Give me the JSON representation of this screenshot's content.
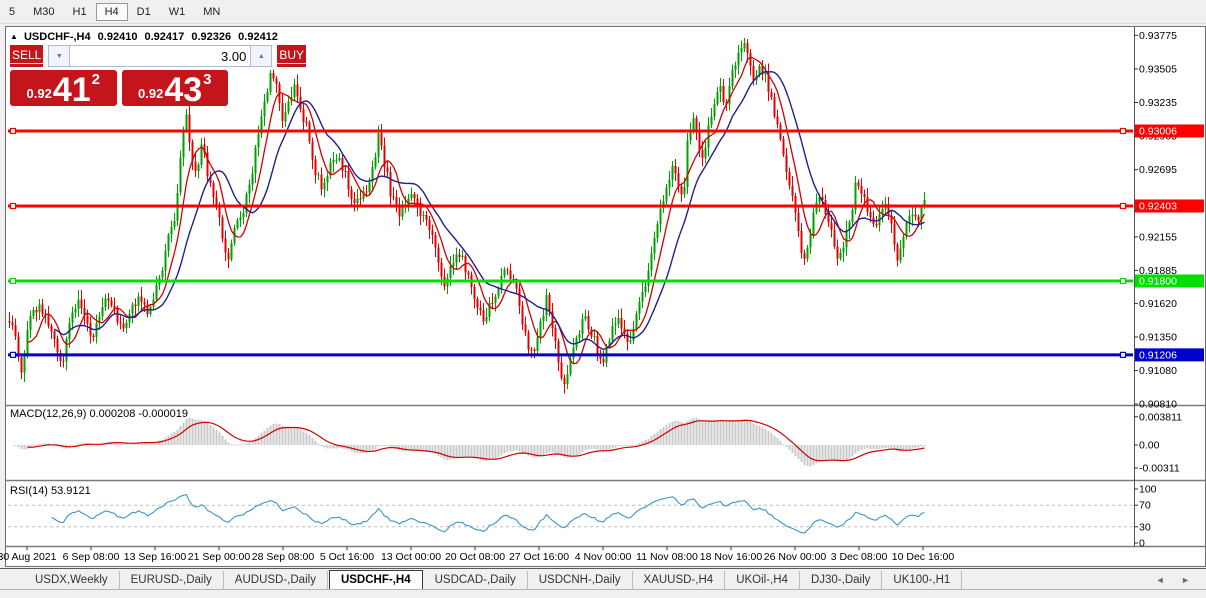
{
  "toolbar": {
    "timeframes": [
      {
        "label": "5",
        "active": false
      },
      {
        "label": "M30",
        "active": false
      },
      {
        "label": "H1",
        "active": false
      },
      {
        "label": "H4",
        "active": true
      },
      {
        "label": "D1",
        "active": false
      },
      {
        "label": "W1",
        "active": false
      },
      {
        "label": "MN",
        "active": false
      }
    ]
  },
  "chart": {
    "title": {
      "arrow": "▲",
      "symbol": "USDCHF-,H4",
      "open": "0.92410",
      "high": "0.92417",
      "low": "0.92326",
      "close": "0.92412"
    },
    "trade_panel": {
      "sell_label": "SELL",
      "buy_label": "BUY",
      "volume": "3.00",
      "down_arrow": "▼",
      "up_arrow": "▲",
      "sell_price": {
        "prefix": "0.92",
        "big": "41",
        "sup": "2"
      },
      "buy_price": {
        "prefix": "0.92",
        "big": "43",
        "sup": "3"
      }
    }
  },
  "chart_data": {
    "type": "candlestick",
    "symbol": "USDCHF-",
    "timeframe": "H4",
    "price_axis_ticks": [
      "0.93775",
      "0.93505",
      "0.93235",
      "0.92965",
      "0.92695",
      "0.92425",
      "0.92155",
      "0.91885",
      "0.91620",
      "0.91350",
      "0.91080",
      "0.90810"
    ],
    "time_axis_labels": [
      "30 Aug 2021",
      "6 Sep 08:00",
      "13 Sep 16:00",
      "21 Sep 00:00",
      "28 Sep 08:00",
      "5 Oct 16:00",
      "13 Oct 00:00",
      "20 Oct 08:00",
      "27 Oct 16:00",
      "4 Nov 00:00",
      "11 Nov 08:00",
      "18 Nov 16:00",
      "26 Nov 00:00",
      "3 Dec 08:00",
      "10 Dec 16:00"
    ],
    "hlines": [
      {
        "price": "0.93006",
        "label": "0.93006",
        "color": "#FF0000"
      },
      {
        "price": "0.92403",
        "label": "0.92403",
        "color": "#FF0000"
      },
      {
        "price": "0.91800",
        "label": "0.91800",
        "color": "#00DE00"
      },
      {
        "price": "0.91206",
        "label": "0.91206",
        "color": "#0000CC"
      }
    ],
    "plot_price_range": {
      "top": 0.93834,
      "bottom": 0.90811
    },
    "bars": 306,
    "price_path_anchors": [
      [
        0.0,
        0.9148
      ],
      [
        0.008,
        0.9132
      ],
      [
        0.013,
        0.9106
      ],
      [
        0.022,
        0.9152
      ],
      [
        0.033,
        0.916
      ],
      [
        0.043,
        0.9142
      ],
      [
        0.051,
        0.9128
      ],
      [
        0.059,
        0.9115
      ],
      [
        0.067,
        0.915
      ],
      [
        0.076,
        0.9162
      ],
      [
        0.084,
        0.915
      ],
      [
        0.091,
        0.9135
      ],
      [
        0.1,
        0.9155
      ],
      [
        0.109,
        0.9168
      ],
      [
        0.124,
        0.914
      ],
      [
        0.133,
        0.9155
      ],
      [
        0.141,
        0.9165
      ],
      [
        0.149,
        0.9155
      ],
      [
        0.157,
        0.9168
      ],
      [
        0.165,
        0.9185
      ],
      [
        0.174,
        0.9215
      ],
      [
        0.182,
        0.9235
      ],
      [
        0.189,
        0.9295
      ],
      [
        0.193,
        0.932
      ],
      [
        0.198,
        0.9285
      ],
      [
        0.204,
        0.927
      ],
      [
        0.211,
        0.929
      ],
      [
        0.217,
        0.9265
      ],
      [
        0.225,
        0.9245
      ],
      [
        0.233,
        0.9215
      ],
      [
        0.239,
        0.92
      ],
      [
        0.247,
        0.9222
      ],
      [
        0.254,
        0.9235
      ],
      [
        0.261,
        0.925
      ],
      [
        0.268,
        0.928
      ],
      [
        0.276,
        0.931
      ],
      [
        0.283,
        0.934
      ],
      [
        0.287,
        0.9352
      ],
      [
        0.293,
        0.933
      ],
      [
        0.299,
        0.9305
      ],
      [
        0.304,
        0.932
      ],
      [
        0.312,
        0.9342
      ],
      [
        0.317,
        0.932
      ],
      [
        0.326,
        0.93
      ],
      [
        0.334,
        0.927
      ],
      [
        0.341,
        0.9258
      ],
      [
        0.35,
        0.9272
      ],
      [
        0.359,
        0.928
      ],
      [
        0.366,
        0.9268
      ],
      [
        0.374,
        0.9248
      ],
      [
        0.383,
        0.9242
      ],
      [
        0.391,
        0.9255
      ],
      [
        0.399,
        0.9275
      ],
      [
        0.404,
        0.9298
      ],
      [
        0.41,
        0.9275
      ],
      [
        0.417,
        0.925
      ],
      [
        0.426,
        0.9235
      ],
      [
        0.435,
        0.9245
      ],
      [
        0.442,
        0.925
      ],
      [
        0.45,
        0.9235
      ],
      [
        0.459,
        0.9225
      ],
      [
        0.467,
        0.92
      ],
      [
        0.475,
        0.9175
      ],
      [
        0.483,
        0.9192
      ],
      [
        0.489,
        0.9205
      ],
      [
        0.497,
        0.9195
      ],
      [
        0.504,
        0.9175
      ],
      [
        0.511,
        0.9158
      ],
      [
        0.518,
        0.9148
      ],
      [
        0.526,
        0.9162
      ],
      [
        0.535,
        0.9175
      ],
      [
        0.543,
        0.919
      ],
      [
        0.551,
        0.918
      ],
      [
        0.559,
        0.9155
      ],
      [
        0.565,
        0.913
      ],
      [
        0.573,
        0.9118
      ],
      [
        0.58,
        0.9145
      ],
      [
        0.587,
        0.9165
      ],
      [
        0.595,
        0.914
      ],
      [
        0.6,
        0.911
      ],
      [
        0.605,
        0.9092
      ],
      [
        0.613,
        0.9118
      ],
      [
        0.62,
        0.9135
      ],
      [
        0.627,
        0.915
      ],
      [
        0.635,
        0.9142
      ],
      [
        0.641,
        0.9128
      ],
      [
        0.649,
        0.9115
      ],
      [
        0.657,
        0.9135
      ],
      [
        0.663,
        0.915
      ],
      [
        0.671,
        0.9142
      ],
      [
        0.678,
        0.913
      ],
      [
        0.687,
        0.9155
      ],
      [
        0.696,
        0.918
      ],
      [
        0.703,
        0.921
      ],
      [
        0.711,
        0.9235
      ],
      [
        0.717,
        0.9255
      ],
      [
        0.725,
        0.927
      ],
      [
        0.73,
        0.9262
      ],
      [
        0.737,
        0.9248
      ],
      [
        0.741,
        0.9295
      ],
      [
        0.747,
        0.931
      ],
      [
        0.752,
        0.9295
      ],
      [
        0.758,
        0.928
      ],
      [
        0.763,
        0.93
      ],
      [
        0.768,
        0.932
      ],
      [
        0.776,
        0.9335
      ],
      [
        0.783,
        0.932
      ],
      [
        0.79,
        0.9345
      ],
      [
        0.798,
        0.9365
      ],
      [
        0.804,
        0.9375
      ],
      [
        0.809,
        0.9358
      ],
      [
        0.815,
        0.934
      ],
      [
        0.82,
        0.9352
      ],
      [
        0.826,
        0.9345
      ],
      [
        0.833,
        0.9325
      ],
      [
        0.841,
        0.93
      ],
      [
        0.848,
        0.9275
      ],
      [
        0.855,
        0.925
      ],
      [
        0.861,
        0.9225
      ],
      [
        0.867,
        0.9195
      ],
      [
        0.874,
        0.9215
      ],
      [
        0.88,
        0.924
      ],
      [
        0.887,
        0.925
      ],
      [
        0.893,
        0.9235
      ],
      [
        0.9,
        0.9215
      ],
      [
        0.907,
        0.9195
      ],
      [
        0.913,
        0.9215
      ],
      [
        0.921,
        0.924
      ],
      [
        0.926,
        0.9262
      ],
      [
        0.933,
        0.925
      ],
      [
        0.939,
        0.9235
      ],
      [
        0.946,
        0.9222
      ],
      [
        0.952,
        0.9232
      ],
      [
        0.959,
        0.924
      ],
      [
        0.965,
        0.922
      ],
      [
        0.972,
        0.9195
      ],
      [
        0.978,
        0.9222
      ],
      [
        0.985,
        0.9235
      ],
      [
        0.991,
        0.9228
      ],
      [
        0.997,
        0.9238
      ],
      [
        1.0,
        0.9241
      ]
    ],
    "macd": {
      "label": "MACD(12,26,9) 0.000208 -0.000019",
      "fast": 12,
      "slow": 26,
      "signal_period": 9,
      "value": "0.000208",
      "signal_value": "-0.000019",
      "axis_ticks": [
        "0.003811",
        "0.00",
        "-0.00311"
      ]
    },
    "rsi": {
      "label": "RSI(14) 53.9121",
      "period": 14,
      "value": "53.9121",
      "levels": [
        70,
        30
      ],
      "axis_ticks": [
        "100",
        "70",
        "30",
        "0"
      ]
    }
  },
  "tabs": {
    "items": [
      {
        "label": "USDX,Weekly"
      },
      {
        "label": "EURUSD-,Daily"
      },
      {
        "label": "AUDUSD-,Daily"
      },
      {
        "label": "USDCHF-,H4"
      },
      {
        "label": "USDCAD-,Daily"
      },
      {
        "label": "USDCNH-,Daily"
      },
      {
        "label": "XAUUSD-,H4"
      },
      {
        "label": "UKOil-,H4"
      },
      {
        "label": "DJ30-,Daily"
      },
      {
        "label": "UK100-,H1"
      }
    ],
    "active_index": 3,
    "scroll_left": "◄",
    "scroll_right": "►"
  },
  "colors": {
    "candle_up": "#00A000",
    "candle_down": "#E30000",
    "ma_fast": "#D40000",
    "ma_slow": "#20208F",
    "macd_hist": "#C9C9C9",
    "macd_signal": "#D40000",
    "rsi_line": "#3C96C8",
    "level_dashed": "#BDBDBD",
    "axis_text": "#000000",
    "tag_text": "#FFFFFF",
    "panel_red": "#C4151C"
  }
}
